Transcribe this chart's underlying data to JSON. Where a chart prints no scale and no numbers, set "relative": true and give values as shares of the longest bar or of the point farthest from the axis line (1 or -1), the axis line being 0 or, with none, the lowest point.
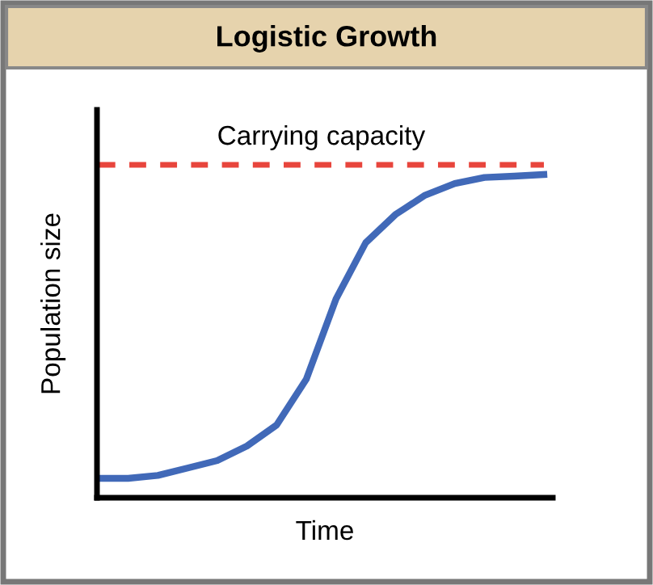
{
  "chart_data": {
    "type": "line",
    "title": "Logistic Growth",
    "xlabel": "Time",
    "ylabel": "Population size",
    "relative": true,
    "categories": [
      null,
      null,
      null,
      null,
      null,
      null,
      null,
      null,
      null,
      null,
      null,
      null,
      null,
      null,
      null,
      null
    ],
    "series": [
      {
        "color": "#4169b8",
        "values": [
          0.06,
          0.06,
          0.069,
          0.092,
          0.115,
          0.16,
          0.225,
          0.367,
          0.615,
          0.789,
          0.876,
          0.936,
          0.972,
          0.991,
          0.995,
          1
        ]
      }
    ],
    "ref_lines": [
      {
        "axis": "y",
        "value": 1.03,
        "label": "Carrying capacity",
        "color": "#e8453c",
        "line_style": "dashed"
      }
    ],
    "marker": "none",
    "line_style": "solid"
  }
}
